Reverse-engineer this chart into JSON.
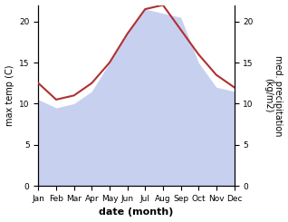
{
  "months": [
    "Jan",
    "Feb",
    "Mar",
    "Apr",
    "May",
    "Jun",
    "Jul",
    "Aug",
    "Sep",
    "Oct",
    "Nov",
    "Dec"
  ],
  "temperature": [
    12.5,
    10.5,
    11.0,
    12.5,
    15.0,
    18.5,
    21.5,
    22.0,
    19.0,
    16.0,
    13.5,
    12.0
  ],
  "precipitation": [
    10.5,
    9.5,
    10.0,
    11.5,
    15.0,
    18.5,
    21.5,
    21.0,
    20.5,
    15.0,
    12.0,
    11.5
  ],
  "temp_ylim": [
    0,
    22
  ],
  "precip_ylim": [
    0,
    22
  ],
  "temp_yticks": [
    0,
    5,
    10,
    15,
    20
  ],
  "precip_yticks": [
    0,
    5,
    10,
    15,
    20
  ],
  "fill_color": "#c8d0f0",
  "line_color": "#b03030",
  "line_width": 1.5,
  "xlabel": "date (month)",
  "ylabel_left": "max temp (C)",
  "ylabel_right": "med. precipitation\n(kg/m2)",
  "bg_color": "#ffffff",
  "xlabel_fontsize": 8,
  "ylabel_fontsize": 7,
  "tick_fontsize": 6.5
}
